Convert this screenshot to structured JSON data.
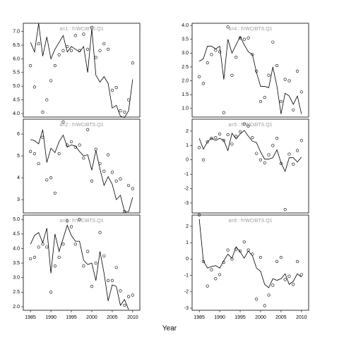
{
  "xlabel": "Year",
  "chart_data": [
    {
      "type": "line",
      "title": "a=1 : f=WCIBTS.Q1",
      "x": [
        1985,
        1986,
        1987,
        1988,
        1989,
        1990,
        1991,
        1992,
        1993,
        1994,
        1995,
        1996,
        1997,
        1998,
        1999,
        2000,
        2001,
        2002,
        2003,
        2004,
        2005,
        2006,
        2007,
        2008,
        2009,
        2010
      ],
      "series": [
        {
          "style": "line",
          "color": "#000000",
          "values": [
            6.6,
            6.25,
            7.3,
            6.1,
            6.8,
            6.0,
            6.35,
            6.6,
            6.85,
            6.25,
            6.45,
            6.35,
            6.25,
            6.45,
            5.5,
            7.1,
            5.4,
            5.15,
            5.35,
            5.1,
            4.2,
            4.3,
            3.9,
            3.85,
            4.1,
            5.25
          ]
        },
        {
          "style": "points",
          "color": "#000000",
          "values": [
            5.75,
            4.97,
            6.55,
            4.05,
            4.5,
            5.2,
            5.75,
            6.15,
            6.3,
            6.45,
            6.3,
            6.85,
            6.3,
            6.9,
            6.35,
            7.15,
            6.05,
            6.3,
            6.55,
            6.35,
            4.85,
            4.95,
            4.1,
            4.05,
            4.5,
            5.85
          ]
        }
      ],
      "xlim": [
        1983.25,
        2011.75
      ],
      "ylim": [
        3.87,
        7.3
      ],
      "yticks": [
        {
          "value": 4,
          "label": "4.0"
        },
        4.5,
        {
          "value": 5,
          "label": "5.0"
        },
        5.5,
        {
          "value": 6,
          "label": "6.0"
        },
        6.5,
        {
          "value": 7,
          "label": "7.0"
        }
      ]
    },
    {
      "type": "line",
      "title": "a=2 : f=WCIBTS.Q1",
      "x": [
        1985,
        1986,
        1987,
        1988,
        1989,
        1990,
        1991,
        1992,
        1993,
        1994,
        1995,
        1996,
        1997,
        1998,
        1999,
        2000,
        2001,
        2002,
        2003,
        2004,
        2005,
        2006,
        2007,
        2008,
        2009,
        2010
      ],
      "series": [
        {
          "style": "line",
          "color": "#000000",
          "values": [
            5.75,
            5.7,
            5.55,
            6.2,
            4.7,
            5.35,
            5.15,
            5.65,
            5.95,
            5.4,
            5.5,
            5.45,
            5.2,
            5.0,
            5.05,
            4.35,
            5.25,
            4.4,
            3.65,
            4.05,
            3.7,
            3.0,
            3.2,
            2.45,
            2.45,
            3.1
          ]
        },
        {
          "style": "points",
          "color": "#000000",
          "values": [
            5.2,
            5.1,
            4.65,
            5.85,
            3.9,
            4.0,
            3.3,
            5.1,
            6.55,
            5.5,
            5.65,
            5.4,
            5.5,
            4.9,
            6.2,
            3.85,
            5.3,
            4.65,
            4.3,
            5.05,
            4.25,
            3.85,
            3.95,
            2.45,
            3.65,
            3.5
          ]
        }
      ],
      "xlim": [
        1983.25,
        2011.75
      ],
      "ylim": [
        2.39,
        6.68
      ],
      "yticks": [
        3,
        4,
        5,
        6
      ]
    },
    {
      "type": "line",
      "title": "a=3 : f=WCIBTS.Q1",
      "x": [
        1985,
        1986,
        1987,
        1988,
        1989,
        1990,
        1991,
        1992,
        1993,
        1994,
        1995,
        1996,
        1997,
        1998,
        1999,
        2000,
        2001,
        2002,
        2003,
        2004,
        2005,
        2006,
        2007,
        2008,
        2009,
        2010
      ],
      "series": [
        {
          "style": "line",
          "color": "#000000",
          "values": [
            4.15,
            4.45,
            4.55,
            4.2,
            4.7,
            3.15,
            4.5,
            3.9,
            4.35,
            4.8,
            4.45,
            4.25,
            4.25,
            3.6,
            3.45,
            3.5,
            2.9,
            3.9,
            3.15,
            2.2,
            2.75,
            2.7,
            2.05,
            2.25,
            1.9,
            null
          ]
        },
        {
          "style": "points",
          "color": "#000000",
          "values": [
            3.65,
            3.7,
            4.05,
            4.15,
            4.05,
            2.5,
            3.4,
            3.7,
            4.15,
            4.95,
            4.75,
            4.15,
            5.0,
            3.4,
            3.9,
            2.7,
            3.5,
            4.55,
            3.75,
            2.9,
            2.9,
            3.35,
            2.55,
            2.05,
            2.35,
            2.4
          ]
        }
      ],
      "xlim": [
        1983.25,
        2011.75
      ],
      "ylim": [
        1.88,
        5.15
      ],
      "xticks": [
        1985,
        1990,
        1995,
        2000,
        2005,
        2010
      ],
      "yticks": [
        {
          "value": 2,
          "label": "2.0"
        },
        2.5,
        {
          "value": 3,
          "label": "3.0"
        },
        3.5,
        {
          "value": 4,
          "label": "4.0"
        },
        4.5,
        {
          "value": 5,
          "label": "5.0"
        }
      ]
    },
    {
      "type": "line",
      "title": "a=4 : f=WCIBTS.Q1",
      "x": [
        1985,
        1986,
        1987,
        1988,
        1989,
        1990,
        1991,
        1992,
        1993,
        1994,
        1995,
        1996,
        1997,
        1998,
        1999,
        2000,
        2001,
        2002,
        2003,
        2004,
        2005,
        2006,
        2007,
        2008,
        2009,
        2010
      ],
      "series": [
        {
          "style": "line",
          "color": "#000000",
          "values": [
            2.7,
            2.8,
            3.25,
            3.25,
            3.15,
            3.25,
            2.05,
            3.5,
            3.0,
            3.3,
            3.6,
            3.3,
            3.05,
            2.95,
            2.3,
            1.8,
            1.8,
            1.75,
            2.5,
            1.8,
            0.8,
            1.55,
            1.45,
            1.15,
            1.45,
            0.8
          ]
        },
        {
          "style": "points",
          "color": "#000000",
          "values": [
            2.15,
            1.9,
            2.65,
            2.95,
            3.1,
            3.05,
            0.85,
            3.95,
            2.2,
            2.85,
            3.55,
            3.5,
            3.55,
            2.95,
            2.35,
            1.25,
            1.4,
            2.2,
            3.4,
            2.55,
            1.25,
            2.05,
            2.0,
            0.95,
            2.35,
            1.6
          ]
        }
      ],
      "xlim": [
        1983.25,
        2011.75
      ],
      "ylim": [
        0.69,
        4.08
      ],
      "yticks": [
        {
          "value": 1,
          "label": "1.0"
        },
        1.5,
        {
          "value": 2,
          "label": "2.0"
        },
        2.5,
        {
          "value": 3,
          "label": "3.0"
        },
        3.5,
        {
          "value": 4,
          "label": "4.0"
        }
      ]
    },
    {
      "type": "line",
      "title": "a=5 : f=WCIBTS.Q1",
      "x": [
        1985,
        1986,
        1987,
        1988,
        1989,
        1990,
        1991,
        1992,
        1993,
        1994,
        1995,
        1996,
        1997,
        1998,
        1999,
        2000,
        2001,
        2002,
        2003,
        2004,
        2005,
        2006,
        2007,
        2008,
        2009,
        2010
      ],
      "series": [
        {
          "style": "line",
          "color": "#000000",
          "values": [
            1.5,
            0.75,
            1.25,
            1.5,
            1.35,
            1.5,
            1.35,
            0.65,
            1.85,
            1.45,
            1.8,
            2.05,
            1.65,
            1.3,
            1.2,
            0.55,
            0.05,
            0.05,
            0.15,
            0.7,
            -0.2,
            -0.8,
            0.15,
            0.15,
            -0.15,
            0.2
          ]
        },
        {
          "style": "points",
          "color": "#000000",
          "values": [
            0.85,
            0.0,
            1.25,
            1.5,
            1.55,
            1.8,
            1.35,
            1.75,
            1.1,
            1.65,
            1.95,
            2.5,
            2.35,
            1.55,
            0.45,
            0.0,
            -0.2,
            0.35,
            1.0,
            1.5,
            -0.25,
            -3.45,
            0.4,
            -0.3,
            0.65,
            1.35
          ]
        }
      ],
      "xlim": [
        1983.25,
        2011.75
      ],
      "ylim": [
        -3.69,
        2.83
      ],
      "yticks": [
        -3,
        -2,
        -1,
        0,
        1,
        2
      ]
    },
    {
      "type": "line",
      "title": "a=6 : f=WCIBTS.Q1",
      "x": [
        1985,
        1986,
        1987,
        1988,
        1989,
        1990,
        1991,
        1992,
        1993,
        1994,
        1995,
        1996,
        1997,
        1998,
        1999,
        2000,
        2001,
        2002,
        2003,
        2004,
        2005,
        2006,
        2007,
        2008,
        2009,
        2010
      ],
      "series": [
        {
          "style": "line",
          "color": "#000000",
          "values": [
            2.45,
            -0.1,
            -0.55,
            -0.45,
            -0.4,
            -0.55,
            -0.1,
            0.3,
            0.05,
            0.75,
            0.45,
            0.05,
            0.5,
            0.2,
            -0.55,
            -0.75,
            -1.55,
            -1.75,
            -1.2,
            -1.3,
            -1.2,
            -0.9,
            -1.55,
            -1.35,
            -0.9,
            -1.1
          ]
        },
        {
          "style": "points",
          "color": "#000000",
          "values": [
            2.7,
            -0.15,
            -1.65,
            -0.65,
            -1.2,
            -0.95,
            -0.2,
            0.55,
            0.0,
            0.6,
            0.5,
            1.05,
            0.55,
            0.3,
            -2.45,
            0.1,
            -2.85,
            -2.2,
            -1.6,
            -0.15,
            0.1,
            -1.25,
            -1.05,
            -1.55,
            -0.15,
            -0.95
          ]
        }
      ],
      "xlim": [
        1983.25,
        2011.75
      ],
      "ylim": [
        -3.13,
        2.69
      ],
      "xticks": [
        1985,
        1990,
        1995,
        2000,
        2005,
        2010
      ],
      "yticks": [
        -3,
        -2,
        -1,
        0,
        1,
        2
      ]
    }
  ]
}
